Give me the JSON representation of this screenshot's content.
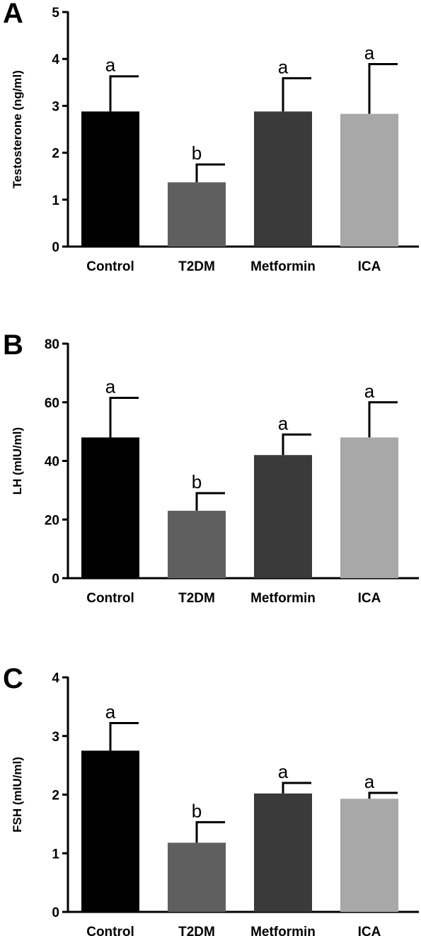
{
  "chart_data": [
    {
      "type": "bar",
      "panel_label": "A",
      "categories": [
        "Control",
        "T2DM",
        "Metformin",
        "ICA"
      ],
      "values": [
        2.88,
        1.37,
        2.88,
        2.83
      ],
      "errors": [
        0.75,
        0.38,
        0.71,
        1.06
      ],
      "significance": [
        "a",
        "b",
        "a",
        "a"
      ],
      "colors": [
        "#000000",
        "#5f5f5f",
        "#3a3a3a",
        "#a8a8a8"
      ],
      "ylabel": "Testosterone (ng/ml)",
      "ylim": [
        0,
        5
      ],
      "yticks": [
        "0",
        "1",
        "2",
        "3",
        "4",
        "5"
      ],
      "grid": false
    },
    {
      "type": "bar",
      "panel_label": "B",
      "categories": [
        "Control",
        "T2DM",
        "Metformin",
        "ICA"
      ],
      "values": [
        48,
        23,
        42,
        48
      ],
      "errors": [
        13.5,
        6,
        7,
        12
      ],
      "significance": [
        "a",
        "b",
        "a",
        "a"
      ],
      "colors": [
        "#000000",
        "#5f5f5f",
        "#3a3a3a",
        "#a8a8a8"
      ],
      "ylabel": "LH (mIU/ml)",
      "ylim": [
        0,
        80
      ],
      "yticks": [
        "0",
        "20",
        "40",
        "60",
        "80"
      ],
      "grid": false
    },
    {
      "type": "bar",
      "panel_label": "C",
      "categories": [
        "Control",
        "T2DM",
        "Metformin",
        "ICA"
      ],
      "values": [
        2.75,
        1.18,
        2.02,
        1.93
      ],
      "errors": [
        0.47,
        0.35,
        0.18,
        0.1
      ],
      "significance": [
        "a",
        "b",
        "a",
        "a"
      ],
      "colors": [
        "#000000",
        "#5f5f5f",
        "#3a3a3a",
        "#a8a8a8"
      ],
      "ylabel": "FSH (mIU/ml)",
      "ylim": [
        0,
        4
      ],
      "yticks": [
        "0",
        "1",
        "2",
        "3",
        "4"
      ],
      "grid": false
    }
  ]
}
